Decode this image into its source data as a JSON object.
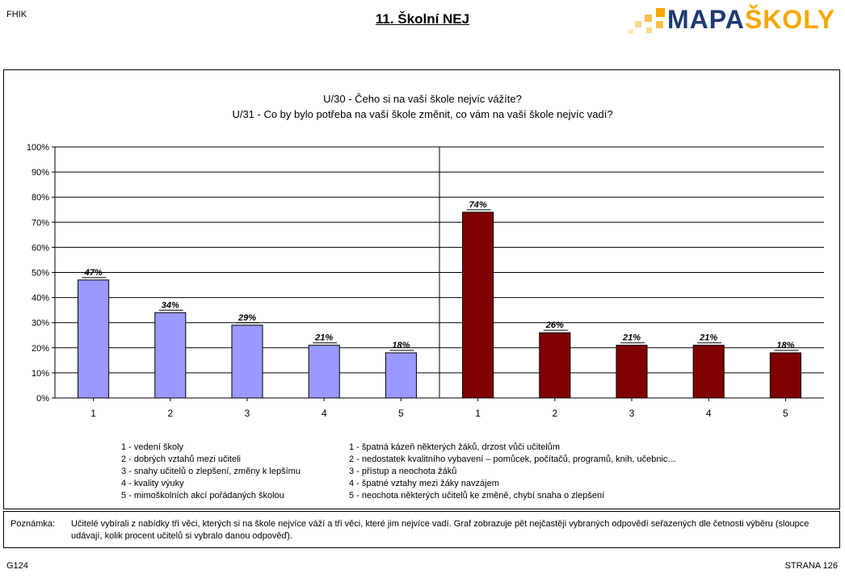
{
  "header": {
    "left_label": "FHIK",
    "title": "11. Školní NEJ",
    "logo_part1": "MAPA",
    "logo_part2": "ŠKOLY",
    "logo_colors": {
      "dark_blue": "#1f3a70",
      "orange": "#f5a800",
      "light_orange": "#fbd98a"
    }
  },
  "chart_data": {
    "type": "bar",
    "title": "U/30 - Čeho si na vaší škole nejvíc vážíte?",
    "subtitle": "U/31 - Co by bylo potřeba na vaší škole změnit, co vám na vaší škole nejvíc vadí?",
    "ylim": [
      0,
      100
    ],
    "yticks": [
      "0%",
      "10%",
      "20%",
      "30%",
      "40%",
      "50%",
      "60%",
      "70%",
      "80%",
      "90%",
      "100%"
    ],
    "grid": true,
    "groups": [
      {
        "question": "U/30",
        "color": "#9999ff",
        "categories": [
          "1",
          "2",
          "3",
          "4",
          "5"
        ],
        "values": [
          47,
          34,
          29,
          21,
          18
        ],
        "labels": [
          "47%",
          "34%",
          "29%",
          "21%",
          "18%"
        ]
      },
      {
        "question": "U/31",
        "color": "#800000",
        "categories": [
          "1",
          "2",
          "3",
          "4",
          "5"
        ],
        "values": [
          74,
          26,
          21,
          21,
          18
        ],
        "labels": [
          "74%",
          "26%",
          "21%",
          "21%",
          "18%"
        ]
      }
    ]
  },
  "legend": {
    "left": [
      "1 - vedení školy",
      "2 - dobrých vztahů mezi učiteli",
      "3 - snahy učitelů o zlepšení, změny k lepšímu",
      "4 - kvality výuky",
      "5 - mimoškolních akcí pořádaných školou"
    ],
    "right": [
      "1 - špatná kázeň některých žáků, drzost vůči učitelům",
      "2 - nedostatek kvalitního vybavení – pomůcek, počítačů, programů, knih, učebnic…",
      "3 - přístup a neochota žáků",
      "4 - špatné vztahy mezi žáky navzájem",
      "5 - neochota některých učitelů ke změně, chybí snaha o zlepšení"
    ]
  },
  "note": {
    "label": "Poznámka:",
    "text": "Učitelé vybírali z nabídky tři věci, kterých si na škole nejvíce váží a tři věci, které jim nejvíce vadí. Graf zobrazuje pět nejčastěji vybraných odpovědí seřazených dle četnosti výběru (sloupce udávají, kolik procent učitelů si vybralo danou odpověď)."
  },
  "footer": {
    "left": "G124",
    "right": "STRANA 126"
  }
}
